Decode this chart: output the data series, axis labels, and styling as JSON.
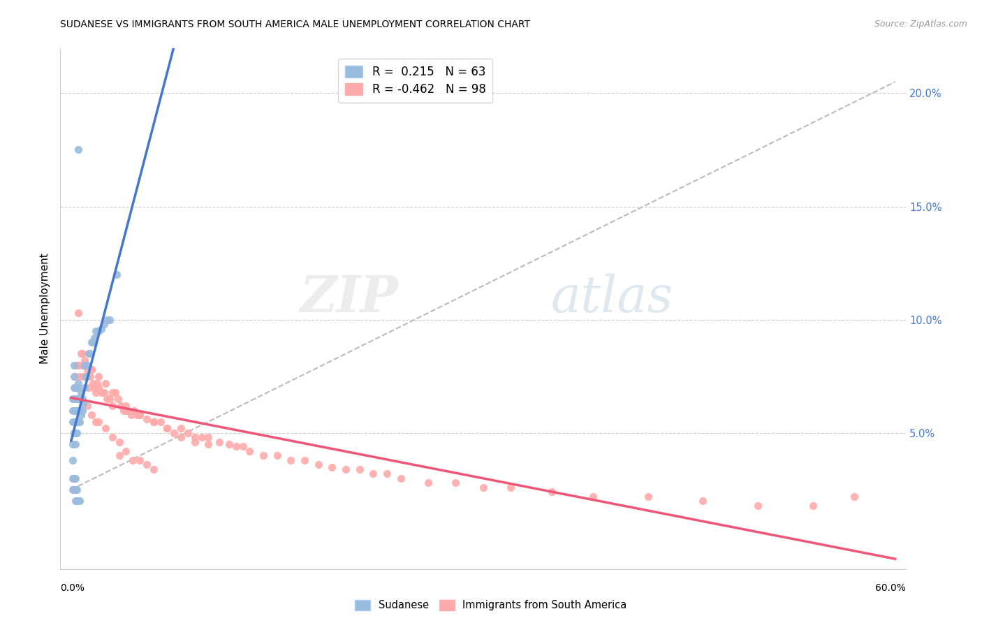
{
  "title": "SUDANESE VS IMMIGRANTS FROM SOUTH AMERICA MALE UNEMPLOYMENT CORRELATION CHART",
  "source": "Source: ZipAtlas.com",
  "ylabel": "Male Unemployment",
  "right_yticks": [
    "20.0%",
    "15.0%",
    "10.0%",
    "5.0%"
  ],
  "right_ytick_vals": [
    0.2,
    0.15,
    0.1,
    0.05
  ],
  "legend_blue_R": "0.215",
  "legend_blue_N": "63",
  "legend_pink_R": "-0.462",
  "legend_pink_N": "98",
  "blue_scatter_color": "#99BBDD",
  "pink_scatter_color": "#FFAAAA",
  "trend_blue_color": "#4477CC",
  "trend_pink_color": "#EE5577",
  "trend_gray_color": "#BBBBBB",
  "xlim": [
    0.0,
    0.6
  ],
  "ylim": [
    0.0,
    0.215
  ],
  "sudanese_x": [
    0.001,
    0.001,
    0.001,
    0.001,
    0.001,
    0.002,
    0.002,
    0.002,
    0.002,
    0.002,
    0.002,
    0.002,
    0.003,
    0.003,
    0.003,
    0.003,
    0.003,
    0.003,
    0.004,
    0.004,
    0.004,
    0.004,
    0.004,
    0.005,
    0.005,
    0.005,
    0.005,
    0.006,
    0.006,
    0.006,
    0.007,
    0.007,
    0.008,
    0.008,
    0.009,
    0.01,
    0.01,
    0.011,
    0.012,
    0.013,
    0.014,
    0.015,
    0.016,
    0.017,
    0.018,
    0.02,
    0.022,
    0.024,
    0.026,
    0.028,
    0.001,
    0.001,
    0.002,
    0.002,
    0.003,
    0.003,
    0.003,
    0.004,
    0.004,
    0.005,
    0.006,
    0.033,
    0.005
  ],
  "sudanese_y": [
    0.045,
    0.055,
    0.06,
    0.065,
    0.038,
    0.05,
    0.055,
    0.06,
    0.065,
    0.07,
    0.075,
    0.08,
    0.045,
    0.05,
    0.055,
    0.06,
    0.065,
    0.07,
    0.05,
    0.055,
    0.06,
    0.065,
    0.07,
    0.055,
    0.06,
    0.065,
    0.072,
    0.055,
    0.06,
    0.065,
    0.058,
    0.068,
    0.06,
    0.065,
    0.063,
    0.07,
    0.08,
    0.075,
    0.08,
    0.085,
    0.085,
    0.09,
    0.09,
    0.092,
    0.095,
    0.095,
    0.096,
    0.098,
    0.1,
    0.1,
    0.03,
    0.025,
    0.03,
    0.025,
    0.03,
    0.025,
    0.02,
    0.025,
    0.02,
    0.02,
    0.02,
    0.12,
    0.175
  ],
  "sa_x": [
    0.003,
    0.004,
    0.005,
    0.006,
    0.007,
    0.008,
    0.009,
    0.01,
    0.011,
    0.012,
    0.013,
    0.014,
    0.015,
    0.016,
    0.017,
    0.018,
    0.019,
    0.02,
    0.022,
    0.024,
    0.026,
    0.028,
    0.03,
    0.032,
    0.034,
    0.036,
    0.038,
    0.04,
    0.042,
    0.044,
    0.046,
    0.048,
    0.05,
    0.055,
    0.06,
    0.065,
    0.07,
    0.075,
    0.08,
    0.085,
    0.09,
    0.095,
    0.1,
    0.108,
    0.115,
    0.12,
    0.125,
    0.13,
    0.14,
    0.15,
    0.16,
    0.17,
    0.18,
    0.19,
    0.2,
    0.21,
    0.22,
    0.23,
    0.24,
    0.26,
    0.28,
    0.3,
    0.32,
    0.35,
    0.38,
    0.42,
    0.46,
    0.5,
    0.54,
    0.57,
    0.005,
    0.008,
    0.01,
    0.012,
    0.015,
    0.02,
    0.025,
    0.03,
    0.04,
    0.05,
    0.06,
    0.07,
    0.08,
    0.09,
    0.1,
    0.015,
    0.02,
    0.025,
    0.03,
    0.035,
    0.04,
    0.05,
    0.06,
    0.035,
    0.045,
    0.055,
    0.012,
    0.018
  ],
  "sa_y": [
    0.075,
    0.08,
    0.08,
    0.075,
    0.085,
    0.08,
    0.075,
    0.08,
    0.075,
    0.075,
    0.07,
    0.075,
    0.078,
    0.072,
    0.07,
    0.068,
    0.072,
    0.07,
    0.068,
    0.068,
    0.065,
    0.065,
    0.062,
    0.068,
    0.065,
    0.062,
    0.06,
    0.062,
    0.06,
    0.058,
    0.06,
    0.058,
    0.058,
    0.056,
    0.055,
    0.055,
    0.052,
    0.05,
    0.052,
    0.05,
    0.048,
    0.048,
    0.048,
    0.046,
    0.045,
    0.044,
    0.044,
    0.042,
    0.04,
    0.04,
    0.038,
    0.038,
    0.036,
    0.035,
    0.034,
    0.034,
    0.032,
    0.032,
    0.03,
    0.028,
    0.028,
    0.026,
    0.026,
    0.024,
    0.022,
    0.022,
    0.02,
    0.018,
    0.018,
    0.022,
    0.103,
    0.085,
    0.082,
    0.078,
    0.078,
    0.075,
    0.072,
    0.068,
    0.06,
    0.058,
    0.055,
    0.052,
    0.048,
    0.046,
    0.045,
    0.058,
    0.055,
    0.052,
    0.048,
    0.046,
    0.042,
    0.038,
    0.034,
    0.04,
    0.038,
    0.036,
    0.062,
    0.055
  ]
}
